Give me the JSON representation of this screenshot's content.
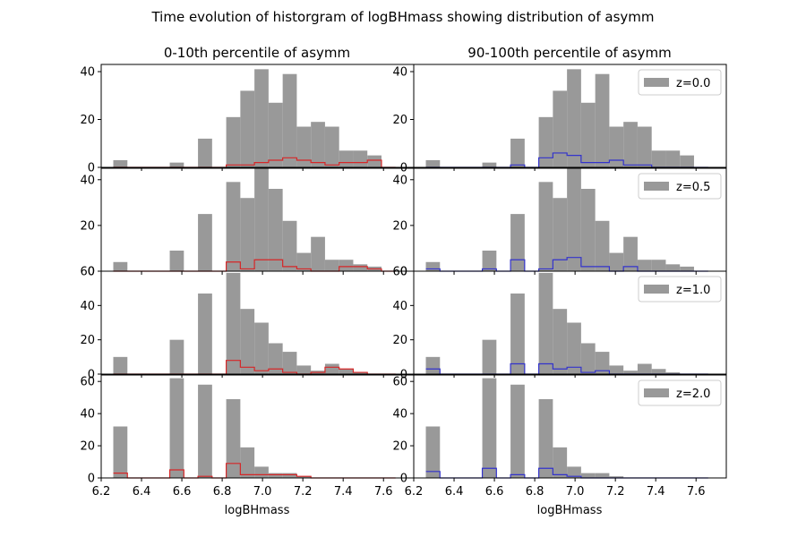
{
  "figure": {
    "suptitle": "Time evolution of historgram of logBHmass showing distribution of asymm",
    "xlabel": "logBHmass",
    "column_titles": [
      "0-10th percentile of asymm",
      "90-100th percentile of asymm"
    ],
    "row_legends": [
      "z=0.0",
      "z=0.5",
      "z=1.0",
      "z=2.0"
    ],
    "colors": {
      "all": "#999999",
      "low": "#d62728",
      "high": "#3333cc"
    }
  },
  "chart_data": {
    "type": "bar",
    "bin_edges": [
      6.26,
      6.33,
      6.4,
      6.47,
      6.54,
      6.61,
      6.68,
      6.75,
      6.82,
      6.89,
      6.96,
      7.03,
      7.1,
      7.17,
      7.24,
      7.31,
      7.38,
      7.45,
      7.52,
      7.59,
      7.66
    ],
    "xlim": [
      6.2,
      7.75
    ],
    "xticks": [
      6.2,
      6.4,
      6.6,
      6.8,
      7.0,
      7.2,
      7.4,
      7.6
    ],
    "panels": [
      {
        "row": 0,
        "col": 0,
        "legend": "",
        "ylim": [
          0,
          43
        ],
        "yticks": [
          0,
          20,
          40
        ],
        "all": [
          3,
          0,
          0,
          0,
          2,
          0,
          12,
          0,
          21,
          32,
          41,
          27,
          39,
          17,
          19,
          17,
          7,
          7,
          5,
          0
        ],
        "step": [
          0,
          0,
          0,
          0,
          0,
          0,
          0,
          0,
          1,
          1,
          2,
          3,
          4,
          3,
          2,
          1,
          2,
          2,
          3,
          0
        ]
      },
      {
        "row": 0,
        "col": 1,
        "legend": "z=0.0",
        "ylim": [
          0,
          43
        ],
        "yticks": [
          0,
          20,
          40
        ],
        "all": [
          3,
          0,
          0,
          0,
          2,
          0,
          12,
          0,
          21,
          32,
          41,
          27,
          39,
          17,
          19,
          17,
          7,
          7,
          5,
          0
        ],
        "step": [
          0,
          0,
          0,
          0,
          0,
          0,
          1,
          0,
          4,
          6,
          5,
          2,
          2,
          3,
          1,
          1,
          0,
          0,
          0,
          0
        ]
      },
      {
        "row": 1,
        "col": 0,
        "legend": "",
        "ylim": [
          0,
          45
        ],
        "yticks": [
          0,
          20,
          40
        ],
        "all": [
          4,
          0,
          0,
          0,
          9,
          0,
          25,
          0,
          39,
          32,
          45,
          36,
          22,
          8,
          15,
          5,
          5,
          3,
          2,
          0
        ],
        "step": [
          0,
          0,
          0,
          0,
          0,
          0,
          0,
          0,
          4,
          1,
          5,
          5,
          2,
          1,
          0,
          0,
          2,
          2,
          1,
          0
        ]
      },
      {
        "row": 1,
        "col": 1,
        "legend": "z=0.5",
        "ylim": [
          0,
          45
        ],
        "yticks": [
          0,
          20,
          40
        ],
        "all": [
          4,
          0,
          0,
          0,
          9,
          0,
          25,
          0,
          39,
          32,
          45,
          36,
          22,
          8,
          15,
          5,
          5,
          3,
          2,
          0
        ],
        "step": [
          1,
          0,
          0,
          0,
          1,
          0,
          5,
          0,
          1,
          5,
          6,
          2,
          2,
          0,
          2,
          0,
          0,
          0,
          0,
          0
        ]
      },
      {
        "row": 2,
        "col": 0,
        "legend": "",
        "ylim": [
          0,
          60
        ],
        "yticks": [
          0,
          20,
          40,
          60
        ],
        "all": [
          10,
          0,
          0,
          0,
          20,
          0,
          47,
          0,
          59,
          38,
          30,
          18,
          13,
          5,
          2,
          6,
          3,
          1,
          0,
          0
        ],
        "step": [
          0,
          0,
          0,
          0,
          0,
          0,
          0,
          0,
          8,
          4,
          2,
          3,
          1,
          0,
          1,
          4,
          3,
          1,
          0,
          0
        ]
      },
      {
        "row": 2,
        "col": 1,
        "legend": "z=1.0",
        "ylim": [
          0,
          60
        ],
        "yticks": [
          0,
          20,
          40,
          60
        ],
        "all": [
          10,
          0,
          0,
          0,
          20,
          0,
          47,
          0,
          59,
          38,
          30,
          18,
          13,
          5,
          2,
          6,
          3,
          1,
          0,
          0
        ],
        "step": [
          3,
          0,
          0,
          0,
          0,
          0,
          6,
          0,
          6,
          3,
          4,
          1,
          2,
          0,
          0,
          0,
          0,
          0,
          0,
          0
        ]
      },
      {
        "row": 3,
        "col": 0,
        "legend": "",
        "ylim": [
          0,
          64
        ],
        "yticks": [
          0,
          20,
          40,
          60
        ],
        "all": [
          32,
          0,
          0,
          0,
          62,
          0,
          58,
          0,
          49,
          19,
          7,
          3,
          3,
          1,
          0,
          0,
          0,
          0,
          0,
          0
        ],
        "step": [
          3,
          0,
          0,
          0,
          5,
          0,
          1,
          0,
          9,
          2,
          2,
          2,
          2,
          1,
          0,
          0,
          0,
          0,
          0,
          0
        ]
      },
      {
        "row": 3,
        "col": 1,
        "legend": "z=2.0",
        "ylim": [
          0,
          64
        ],
        "yticks": [
          0,
          20,
          40,
          60
        ],
        "all": [
          32,
          0,
          0,
          0,
          62,
          0,
          58,
          0,
          49,
          19,
          7,
          3,
          3,
          1,
          0,
          0,
          0,
          0,
          0,
          0
        ],
        "step": [
          4,
          0,
          0,
          0,
          6,
          0,
          2,
          0,
          6,
          2,
          1,
          0,
          0,
          0,
          0,
          0,
          0,
          0,
          0,
          0
        ]
      }
    ]
  }
}
